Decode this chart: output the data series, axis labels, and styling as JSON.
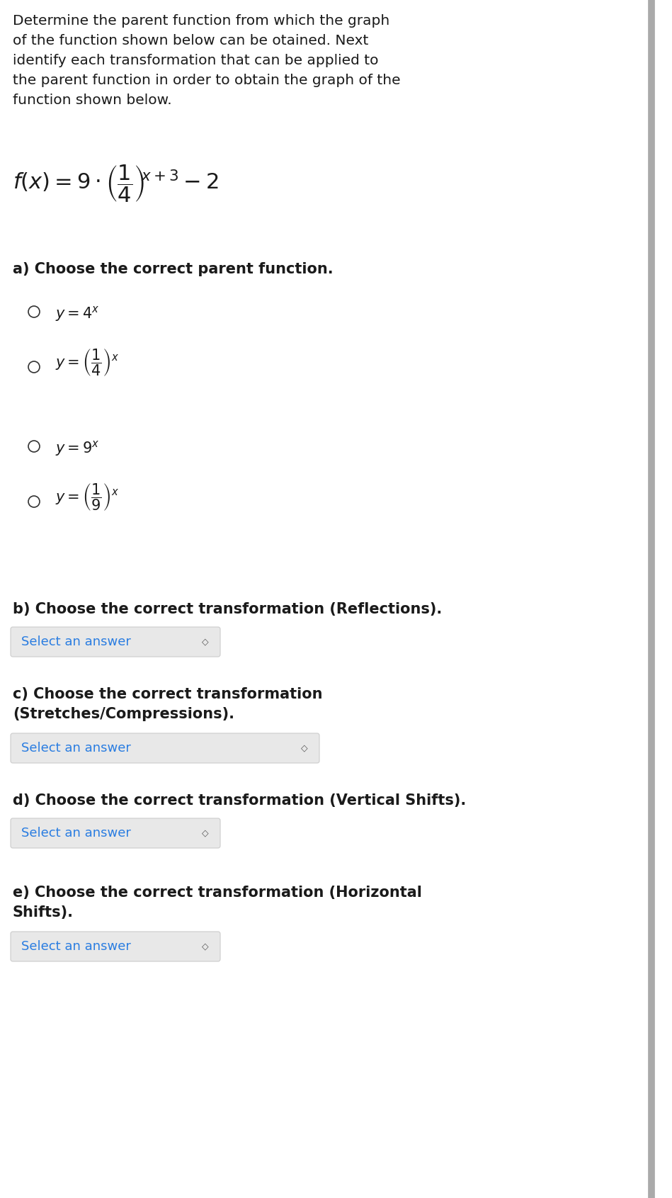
{
  "bg_color": "#ffffff",
  "text_color": "#1a1a1a",
  "blue_color": "#2a7de1",
  "dropdown_bg": "#e8e8e8",
  "dropdown_border": "#cccccc",
  "header_lines": [
    "Determine the parent function from which the graph",
    "of the function shown below can be otained. Next",
    "identify each transformation that can be applied to",
    "the parent function in order to obtain the graph of the",
    "function shown below."
  ],
  "dropdown_text": "Select an answer",
  "right_bar_color": "#aaaaaa",
  "font_size_header": 14.5,
  "font_size_section": 15,
  "font_size_option_math": 15,
  "font_size_dropdown": 13,
  "font_size_formula": 22
}
